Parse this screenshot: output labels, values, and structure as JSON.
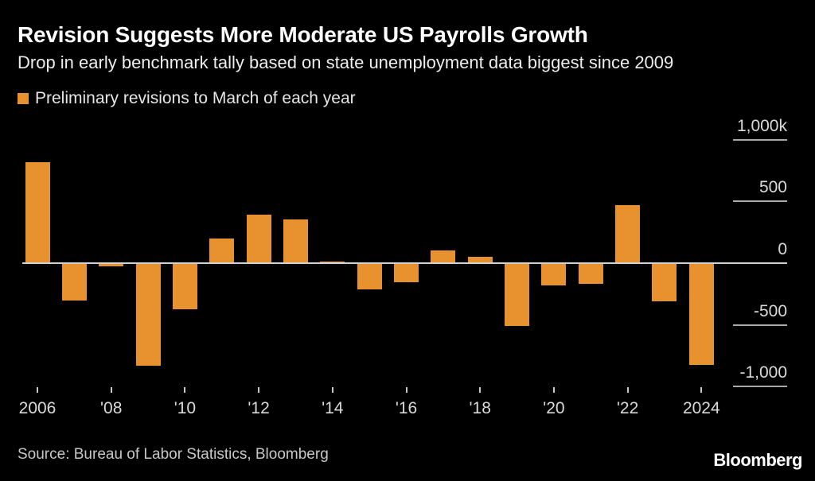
{
  "header": {
    "title": "Revision Suggests More Moderate US Payrolls Growth",
    "subtitle": "Drop in early benchmark tally based on state unemployment data biggest since 2009"
  },
  "legend": {
    "label": "Preliminary revisions to March of each year",
    "swatch_color": "#E8922F"
  },
  "chart_data": {
    "type": "bar",
    "title": "Revision Suggests More Moderate US Payrolls Growth",
    "unit": "thousands of jobs (k)",
    "categories": [
      2006,
      2007,
      2008,
      2009,
      2010,
      2011,
      2012,
      2013,
      2014,
      2015,
      2016,
      2017,
      2018,
      2019,
      2020,
      2021,
      2022,
      2023,
      2024
    ],
    "values": [
      810,
      -297,
      -21,
      -824,
      -366,
      192,
      386,
      345,
      7,
      -208,
      -150,
      95,
      43,
      -501,
      -173,
      -161,
      462,
      -306,
      -818
    ],
    "bar_color": "#E8922F",
    "ylim": [
      -1000,
      1000
    ],
    "grid": "right-side horizontal ticks",
    "legend_position": "top-left",
    "yticks": [
      {
        "value": 1000,
        "label": "1,000k"
      },
      {
        "value": 500,
        "label": "500"
      },
      {
        "value": 0,
        "label": "0"
      },
      {
        "value": -500,
        "label": "-500"
      },
      {
        "value": -1000,
        "label": "-1,000"
      }
    ],
    "xticks": [
      {
        "year": 2006,
        "label": "2006"
      },
      {
        "year": 2008,
        "label": "'08"
      },
      {
        "year": 2010,
        "label": "'10"
      },
      {
        "year": 2012,
        "label": "'12"
      },
      {
        "year": 2014,
        "label": "'14"
      },
      {
        "year": 2016,
        "label": "'16"
      },
      {
        "year": 2018,
        "label": "'18"
      },
      {
        "year": 2020,
        "label": "'20"
      },
      {
        "year": 2022,
        "label": "'22"
      },
      {
        "year": 2024,
        "label": "2024"
      }
    ]
  },
  "footer": {
    "source": "Source: Bureau of Labor Statistics, Bloomberg",
    "logo": "Bloomberg"
  },
  "colors": {
    "background": "#000000",
    "accent": "#E8922F",
    "title_text": "#FFFFFF",
    "axis_text": "#DADADA",
    "tick_line": "#A9A9A9",
    "zero_line": "#D2D2D2"
  }
}
